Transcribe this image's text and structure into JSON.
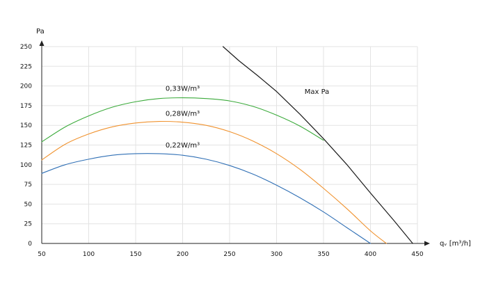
{
  "chart_data": {
    "type": "line",
    "ylabel": "Pa",
    "xlabel": "qᵥ [m³/h]",
    "xlim": [
      50,
      450
    ],
    "ylim": [
      0,
      250
    ],
    "x_ticks": [
      50,
      100,
      150,
      200,
      250,
      300,
      350,
      400,
      450
    ],
    "y_ticks": [
      0,
      25,
      50,
      75,
      100,
      125,
      150,
      175,
      200,
      225,
      250
    ],
    "grid": true,
    "series": [
      {
        "name": "0,33W/m³",
        "color": "#3aaa3a",
        "x": [
          50,
          75,
          100,
          125,
          150,
          175,
          200,
          225,
          250,
          275,
          300,
          325,
          350
        ],
        "y": [
          129,
          148,
          162,
          173,
          180,
          184,
          185,
          184,
          181,
          174,
          163,
          149,
          131
        ]
      },
      {
        "name": "0,28W/m³",
        "color": "#f0922e",
        "x": [
          50,
          75,
          100,
          125,
          150,
          175,
          200,
          225,
          250,
          275,
          300,
          325,
          350,
          375,
          400,
          417
        ],
        "y": [
          106,
          126,
          139,
          148,
          153,
          155,
          154,
          150,
          142,
          130,
          114,
          94,
          70,
          44,
          16,
          0
        ]
      },
      {
        "name": "0,22W/m³",
        "color": "#2f6fb5",
        "x": [
          50,
          75,
          100,
          125,
          150,
          175,
          200,
          225,
          250,
          275,
          300,
          325,
          350,
          375,
          400
        ],
        "y": [
          89,
          100,
          107,
          112,
          114,
          114,
          112,
          107,
          99,
          88,
          74,
          58,
          40,
          20,
          0
        ]
      },
      {
        "name": "Max Pa",
        "color": "#1a1a1a",
        "x": [
          243,
          260,
          280,
          300,
          325,
          350,
          375,
          400,
          425,
          445
        ],
        "y": [
          250,
          232,
          213,
          193,
          164,
          133,
          100,
          64,
          29,
          0
        ]
      }
    ]
  }
}
